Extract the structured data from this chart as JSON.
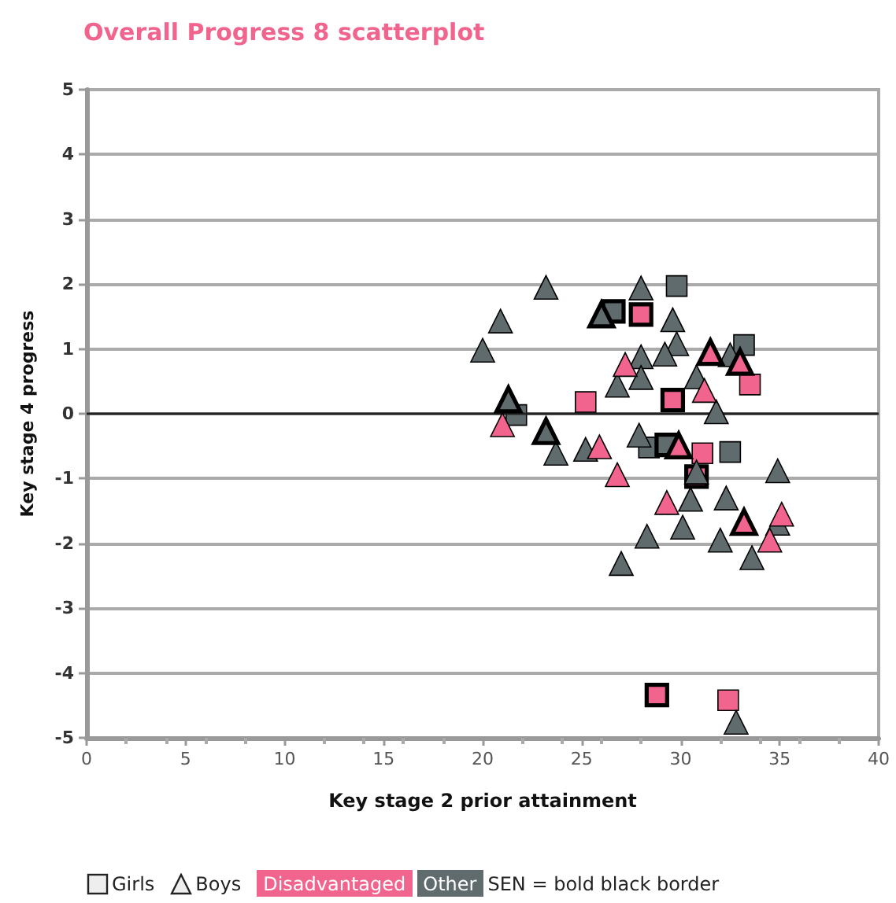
{
  "chart_data": {
    "type": "scatter",
    "title": "Overall Progress 8 scatterplot",
    "xlabel": "Key stage 2 prior attainment",
    "ylabel": "Key stage 4 progress",
    "xlim": [
      0,
      40
    ],
    "xticks": [
      0,
      5,
      10,
      15,
      20,
      25,
      30,
      35,
      40
    ],
    "ylim": [
      -5,
      5
    ],
    "yticks": [
      -5,
      -4,
      -3,
      -2,
      -1,
      0,
      1,
      2,
      3,
      4,
      5
    ],
    "grid": "y",
    "ref_lines": [
      {
        "axis": "y",
        "value": 0,
        "color": "#222222"
      }
    ],
    "annotations": [
      "Girls",
      "Boys",
      "Disadvantaged",
      "Other",
      "SEN = bold black border"
    ],
    "series": [
      {
        "marker": "square",
        "x": [
          33.5,
          25.2,
          31.1,
          32.4,
          29.8,
          33.2,
          21.7,
          28.4,
          32.5
        ],
        "values": [
          0.45,
          0.18,
          -0.61,
          -4.42,
          1.97,
          1.06,
          -0.02,
          -0.52,
          -0.59
        ],
        "colors": [
          "#f0648e",
          "#f0648e",
          "#f0648e",
          "#f0648e",
          "#5f6b6d",
          "#5f6b6d",
          "#5f6b6d",
          "#5f6b6d",
          "#5f6b6d"
        ]
      },
      {
        "marker": "square",
        "x": [
          28.0,
          29.6,
          30.8,
          28.8,
          26.6,
          29.3
        ],
        "values": [
          1.53,
          0.21,
          -0.97,
          -4.34,
          1.58,
          -0.48
        ],
        "colors": [
          "#f0648e",
          "#f0648e",
          "#f0648e",
          "#f0648e",
          "#5f6b6d",
          "#5f6b6d"
        ]
      },
      {
        "marker": "triangle",
        "x": [
          23.2,
          28.0,
          29.6,
          20.9,
          20.0,
          29.8,
          29.2,
          28.0,
          28.0,
          26.8,
          32.5,
          30.8,
          31.8,
          23.7,
          25.2,
          27.9,
          34.9,
          30.8,
          30.5,
          32.3,
          34.9,
          30.1,
          28.3,
          32.0,
          33.6,
          27.0,
          32.8,
          27.2,
          31.2,
          21.0,
          25.9,
          26.8,
          29.3,
          35.1,
          34.5
        ],
        "values": [
          1.95,
          1.94,
          1.45,
          1.43,
          0.98,
          1.08,
          0.92,
          0.88,
          0.56,
          0.44,
          0.91,
          0.57,
          0.03,
          -0.61,
          -0.55,
          -0.33,
          -0.88,
          -0.9,
          -1.32,
          -1.3,
          -1.69,
          -1.75,
          -1.89,
          -1.95,
          -2.22,
          -2.31,
          -4.76,
          0.76,
          0.36,
          -0.17,
          -0.51,
          -0.94,
          -1.37,
          -1.55,
          -1.95
        ],
        "colors": [
          "#5f6b6d",
          "#5f6b6d",
          "#5f6b6d",
          "#5f6b6d",
          "#5f6b6d",
          "#5f6b6d",
          "#5f6b6d",
          "#5f6b6d",
          "#5f6b6d",
          "#5f6b6d",
          "#5f6b6d",
          "#5f6b6d",
          "#5f6b6d",
          "#5f6b6d",
          "#5f6b6d",
          "#5f6b6d",
          "#5f6b6d",
          "#5f6b6d",
          "#5f6b6d",
          "#5f6b6d",
          "#5f6b6d",
          "#5f6b6d",
          "#5f6b6d",
          "#5f6b6d",
          "#5f6b6d",
          "#5f6b6d",
          "#5f6b6d",
          "#f0648e",
          "#f0648e",
          "#f0648e",
          "#f0648e",
          "#f0648e",
          "#f0648e",
          "#f0648e",
          "#f0648e"
        ]
      },
      {
        "marker": "triangle",
        "x": [
          26.0,
          21.3,
          23.2,
          31.5,
          33.0,
          29.9,
          33.2
        ],
        "values": [
          1.53,
          0.22,
          -0.27,
          0.95,
          0.8,
          -0.49,
          -1.67
        ],
        "colors": [
          "#5f6b6d",
          "#5f6b6d",
          "#5f6b6d",
          "#f0648e",
          "#f0648e",
          "#f0648e",
          "#f0648e"
        ]
      }
    ]
  }
}
